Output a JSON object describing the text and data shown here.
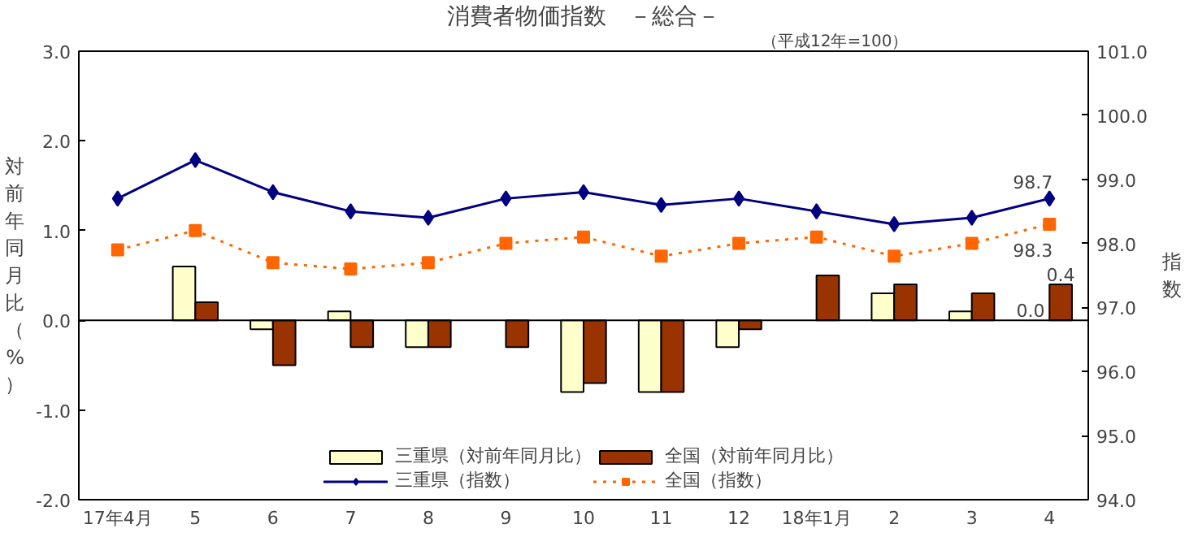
{
  "chart_data": {
    "type": "bar",
    "title": "消費者物価指数　－総合－",
    "subtitle": "（平成12年=100）",
    "ylabel": "対前年同月比（%）",
    "y2label": "指数",
    "categories": [
      "17年4月",
      "5",
      "6",
      "7",
      "8",
      "9",
      "10",
      "11",
      "12",
      "18年1月",
      "2",
      "3",
      "4"
    ],
    "series": [
      {
        "name": "三重県（対前年同月比）",
        "color": "#ffffcc",
        "values": [
          null,
          0.6,
          -0.1,
          0.1,
          -0.3,
          null,
          -0.8,
          -0.8,
          -0.3,
          null,
          0.3,
          0.1,
          0.0
        ],
        "value_labels": [
          null,
          null,
          null,
          null,
          null,
          null,
          null,
          null,
          null,
          null,
          null,
          null,
          "0.0"
        ]
      },
      {
        "name": "全国（対前年同月比）",
        "color": "#993300",
        "values": [
          null,
          0.2,
          -0.5,
          -0.3,
          -0.3,
          -0.3,
          -0.7,
          -0.8,
          -0.1,
          0.5,
          0.4,
          0.3,
          0.4
        ],
        "value_labels": [
          null,
          null,
          null,
          null,
          null,
          null,
          null,
          null,
          null,
          null,
          null,
          null,
          "0.4"
        ]
      },
      {
        "name": "三重県（指数）",
        "type": "line",
        "axis": "y2",
        "color": "#000080",
        "marker": "diamond",
        "line_style": "solid",
        "values": [
          98.7,
          99.3,
          98.8,
          98.5,
          98.4,
          98.7,
          98.8,
          98.6,
          98.7,
          98.5,
          98.3,
          98.4,
          98.7
        ],
        "value_labels": [
          null,
          null,
          null,
          null,
          null,
          null,
          null,
          null,
          null,
          null,
          null,
          null,
          "98.7"
        ]
      },
      {
        "name": "全国（指数）",
        "type": "line",
        "axis": "y2",
        "color": "#ff6600",
        "marker": "square",
        "line_style": "dotted",
        "values": [
          97.9,
          98.2,
          97.7,
          97.6,
          97.7,
          98.0,
          98.1,
          97.8,
          98.0,
          98.1,
          97.8,
          98.0,
          98.3
        ],
        "value_labels": [
          null,
          null,
          null,
          null,
          null,
          null,
          null,
          null,
          null,
          null,
          null,
          null,
          "98.3"
        ]
      }
    ],
    "ylim": [
      -2,
      3
    ],
    "yticks": [
      {
        "value": -2,
        "label": "-2.0"
      },
      {
        "value": -1,
        "label": "-1.0"
      },
      {
        "value": 0,
        "label": "0.0"
      },
      {
        "value": 1,
        "label": "1.0"
      },
      {
        "value": 2,
        "label": "2.0"
      },
      {
        "value": 3,
        "label": "3.0"
      }
    ],
    "y2lim": [
      94,
      101
    ],
    "y2ticks": [
      {
        "value": 94,
        "label": "94.0"
      },
      {
        "value": 95,
        "label": "95.0"
      },
      {
        "value": 96,
        "label": "96.0"
      },
      {
        "value": 97,
        "label": "97.0"
      },
      {
        "value": 98,
        "label": "98.0"
      },
      {
        "value": 99,
        "label": "99.0"
      },
      {
        "value": 100,
        "label": "100.0"
      },
      {
        "value": 101,
        "label": "101.0"
      }
    ],
    "ref_lines": [
      {
        "axis": "y",
        "value": 0,
        "color": "#000000"
      }
    ],
    "grid": false,
    "legend": "bottom"
  }
}
